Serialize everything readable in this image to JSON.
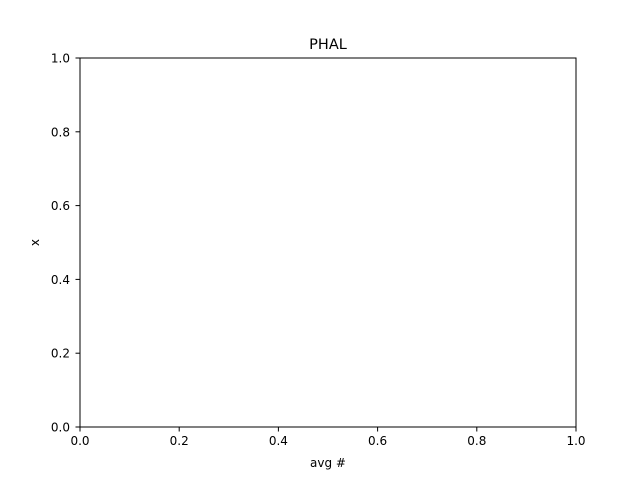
{
  "chart_data": {
    "type": "scatter",
    "title": "PHAL",
    "xlabel": "avg #",
    "ylabel": "x",
    "xlim": [
      0.0,
      1.0
    ],
    "ylim": [
      0.0,
      1.0
    ],
    "xticks": [
      "0.0",
      "0.2",
      "0.4",
      "0.6",
      "0.8",
      "1.0"
    ],
    "yticks": [
      "0.0",
      "0.2",
      "0.4",
      "0.6",
      "0.8",
      "1.0"
    ],
    "grid": false,
    "series": []
  }
}
